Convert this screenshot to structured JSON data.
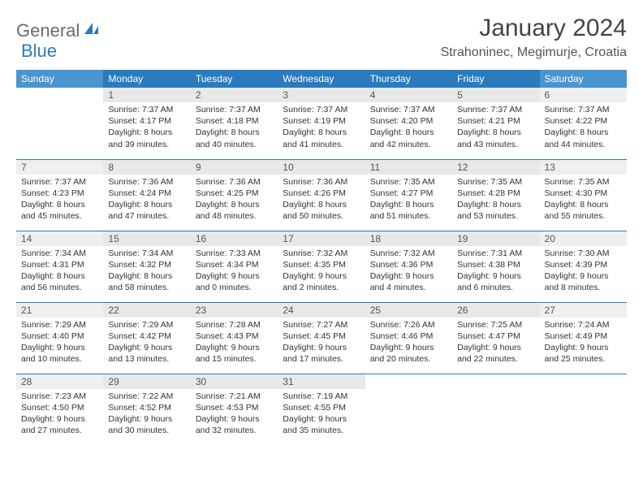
{
  "brand": {
    "part1": "General",
    "part2": "Blue"
  },
  "title": "January 2024",
  "location": "Strahoninec, Megimurje, Croatia",
  "day_names": [
    "Sunday",
    "Monday",
    "Tuesday",
    "Wednesday",
    "Thursday",
    "Friday",
    "Saturday"
  ],
  "colors": {
    "header_bg": "#2a7bbd",
    "header_weekend_bg": "#4a94cf",
    "header_fg": "#ffffff",
    "daynum_bg": "#e8e8e8",
    "row_divider": "#2a7bbd",
    "brand_gray": "#6b6b6b",
    "brand_blue": "#2a7bbd"
  },
  "typography": {
    "title_fontsize": 30,
    "location_fontsize": 16,
    "dayheader_fontsize": 12,
    "daynum_fontsize": 12,
    "body_fontsize": 10.5
  },
  "grid": {
    "cols": 7,
    "rows": 5,
    "first_day_col": 1
  },
  "days": [
    {
      "n": 1,
      "sunrise": "7:37 AM",
      "sunset": "4:17 PM",
      "daylight": "8 hours and 39 minutes."
    },
    {
      "n": 2,
      "sunrise": "7:37 AM",
      "sunset": "4:18 PM",
      "daylight": "8 hours and 40 minutes."
    },
    {
      "n": 3,
      "sunrise": "7:37 AM",
      "sunset": "4:19 PM",
      "daylight": "8 hours and 41 minutes."
    },
    {
      "n": 4,
      "sunrise": "7:37 AM",
      "sunset": "4:20 PM",
      "daylight": "8 hours and 42 minutes."
    },
    {
      "n": 5,
      "sunrise": "7:37 AM",
      "sunset": "4:21 PM",
      "daylight": "8 hours and 43 minutes."
    },
    {
      "n": 6,
      "sunrise": "7:37 AM",
      "sunset": "4:22 PM",
      "daylight": "8 hours and 44 minutes."
    },
    {
      "n": 7,
      "sunrise": "7:37 AM",
      "sunset": "4:23 PM",
      "daylight": "8 hours and 45 minutes."
    },
    {
      "n": 8,
      "sunrise": "7:36 AM",
      "sunset": "4:24 PM",
      "daylight": "8 hours and 47 minutes."
    },
    {
      "n": 9,
      "sunrise": "7:36 AM",
      "sunset": "4:25 PM",
      "daylight": "8 hours and 48 minutes."
    },
    {
      "n": 10,
      "sunrise": "7:36 AM",
      "sunset": "4:26 PM",
      "daylight": "8 hours and 50 minutes."
    },
    {
      "n": 11,
      "sunrise": "7:35 AM",
      "sunset": "4:27 PM",
      "daylight": "8 hours and 51 minutes."
    },
    {
      "n": 12,
      "sunrise": "7:35 AM",
      "sunset": "4:28 PM",
      "daylight": "8 hours and 53 minutes."
    },
    {
      "n": 13,
      "sunrise": "7:35 AM",
      "sunset": "4:30 PM",
      "daylight": "8 hours and 55 minutes."
    },
    {
      "n": 14,
      "sunrise": "7:34 AM",
      "sunset": "4:31 PM",
      "daylight": "8 hours and 56 minutes."
    },
    {
      "n": 15,
      "sunrise": "7:34 AM",
      "sunset": "4:32 PM",
      "daylight": "8 hours and 58 minutes."
    },
    {
      "n": 16,
      "sunrise": "7:33 AM",
      "sunset": "4:34 PM",
      "daylight": "9 hours and 0 minutes."
    },
    {
      "n": 17,
      "sunrise": "7:32 AM",
      "sunset": "4:35 PM",
      "daylight": "9 hours and 2 minutes."
    },
    {
      "n": 18,
      "sunrise": "7:32 AM",
      "sunset": "4:36 PM",
      "daylight": "9 hours and 4 minutes."
    },
    {
      "n": 19,
      "sunrise": "7:31 AM",
      "sunset": "4:38 PM",
      "daylight": "9 hours and 6 minutes."
    },
    {
      "n": 20,
      "sunrise": "7:30 AM",
      "sunset": "4:39 PM",
      "daylight": "9 hours and 8 minutes."
    },
    {
      "n": 21,
      "sunrise": "7:29 AM",
      "sunset": "4:40 PM",
      "daylight": "9 hours and 10 minutes."
    },
    {
      "n": 22,
      "sunrise": "7:29 AM",
      "sunset": "4:42 PM",
      "daylight": "9 hours and 13 minutes."
    },
    {
      "n": 23,
      "sunrise": "7:28 AM",
      "sunset": "4:43 PM",
      "daylight": "9 hours and 15 minutes."
    },
    {
      "n": 24,
      "sunrise": "7:27 AM",
      "sunset": "4:45 PM",
      "daylight": "9 hours and 17 minutes."
    },
    {
      "n": 25,
      "sunrise": "7:26 AM",
      "sunset": "4:46 PM",
      "daylight": "9 hours and 20 minutes."
    },
    {
      "n": 26,
      "sunrise": "7:25 AM",
      "sunset": "4:47 PM",
      "daylight": "9 hours and 22 minutes."
    },
    {
      "n": 27,
      "sunrise": "7:24 AM",
      "sunset": "4:49 PM",
      "daylight": "9 hours and 25 minutes."
    },
    {
      "n": 28,
      "sunrise": "7:23 AM",
      "sunset": "4:50 PM",
      "daylight": "9 hours and 27 minutes."
    },
    {
      "n": 29,
      "sunrise": "7:22 AM",
      "sunset": "4:52 PM",
      "daylight": "9 hours and 30 minutes."
    },
    {
      "n": 30,
      "sunrise": "7:21 AM",
      "sunset": "4:53 PM",
      "daylight": "9 hours and 32 minutes."
    },
    {
      "n": 31,
      "sunrise": "7:19 AM",
      "sunset": "4:55 PM",
      "daylight": "9 hours and 35 minutes."
    }
  ],
  "labels": {
    "sunrise": "Sunrise:",
    "sunset": "Sunset:",
    "daylight": "Daylight:"
  }
}
